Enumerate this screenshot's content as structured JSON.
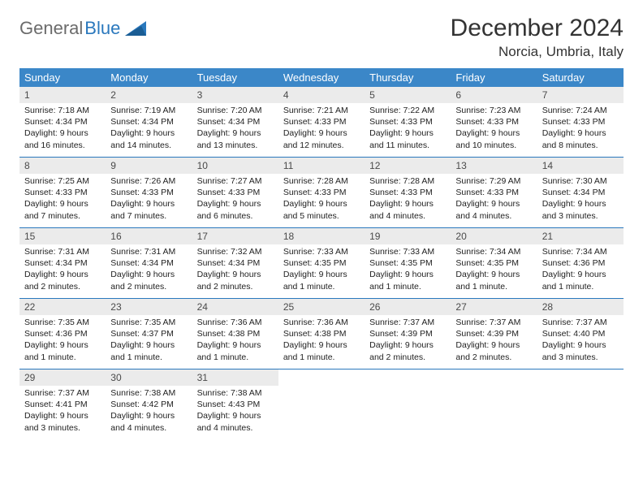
{
  "brand": {
    "word1": "General",
    "word2": "Blue",
    "grey": "#6b6b6b",
    "blue": "#2a78bd"
  },
  "title": {
    "month": "December 2024",
    "location": "Norcia, Umbria, Italy"
  },
  "header_color": "#3b87c8",
  "weekdays": [
    "Sunday",
    "Monday",
    "Tuesday",
    "Wednesday",
    "Thursday",
    "Friday",
    "Saturday"
  ],
  "days": [
    {
      "n": 1,
      "sr": "7:18 AM",
      "ss": "4:34 PM",
      "dl": "9 hours and 16 minutes."
    },
    {
      "n": 2,
      "sr": "7:19 AM",
      "ss": "4:34 PM",
      "dl": "9 hours and 14 minutes."
    },
    {
      "n": 3,
      "sr": "7:20 AM",
      "ss": "4:34 PM",
      "dl": "9 hours and 13 minutes."
    },
    {
      "n": 4,
      "sr": "7:21 AM",
      "ss": "4:33 PM",
      "dl": "9 hours and 12 minutes."
    },
    {
      "n": 5,
      "sr": "7:22 AM",
      "ss": "4:33 PM",
      "dl": "9 hours and 11 minutes."
    },
    {
      "n": 6,
      "sr": "7:23 AM",
      "ss": "4:33 PM",
      "dl": "9 hours and 10 minutes."
    },
    {
      "n": 7,
      "sr": "7:24 AM",
      "ss": "4:33 PM",
      "dl": "9 hours and 8 minutes."
    },
    {
      "n": 8,
      "sr": "7:25 AM",
      "ss": "4:33 PM",
      "dl": "9 hours and 7 minutes."
    },
    {
      "n": 9,
      "sr": "7:26 AM",
      "ss": "4:33 PM",
      "dl": "9 hours and 7 minutes."
    },
    {
      "n": 10,
      "sr": "7:27 AM",
      "ss": "4:33 PM",
      "dl": "9 hours and 6 minutes."
    },
    {
      "n": 11,
      "sr": "7:28 AM",
      "ss": "4:33 PM",
      "dl": "9 hours and 5 minutes."
    },
    {
      "n": 12,
      "sr": "7:28 AM",
      "ss": "4:33 PM",
      "dl": "9 hours and 4 minutes."
    },
    {
      "n": 13,
      "sr": "7:29 AM",
      "ss": "4:33 PM",
      "dl": "9 hours and 4 minutes."
    },
    {
      "n": 14,
      "sr": "7:30 AM",
      "ss": "4:34 PM",
      "dl": "9 hours and 3 minutes."
    },
    {
      "n": 15,
      "sr": "7:31 AM",
      "ss": "4:34 PM",
      "dl": "9 hours and 2 minutes."
    },
    {
      "n": 16,
      "sr": "7:31 AM",
      "ss": "4:34 PM",
      "dl": "9 hours and 2 minutes."
    },
    {
      "n": 17,
      "sr": "7:32 AM",
      "ss": "4:34 PM",
      "dl": "9 hours and 2 minutes."
    },
    {
      "n": 18,
      "sr": "7:33 AM",
      "ss": "4:35 PM",
      "dl": "9 hours and 1 minute."
    },
    {
      "n": 19,
      "sr": "7:33 AM",
      "ss": "4:35 PM",
      "dl": "9 hours and 1 minute."
    },
    {
      "n": 20,
      "sr": "7:34 AM",
      "ss": "4:35 PM",
      "dl": "9 hours and 1 minute."
    },
    {
      "n": 21,
      "sr": "7:34 AM",
      "ss": "4:36 PM",
      "dl": "9 hours and 1 minute."
    },
    {
      "n": 22,
      "sr": "7:35 AM",
      "ss": "4:36 PM",
      "dl": "9 hours and 1 minute."
    },
    {
      "n": 23,
      "sr": "7:35 AM",
      "ss": "4:37 PM",
      "dl": "9 hours and 1 minute."
    },
    {
      "n": 24,
      "sr": "7:36 AM",
      "ss": "4:38 PM",
      "dl": "9 hours and 1 minute."
    },
    {
      "n": 25,
      "sr": "7:36 AM",
      "ss": "4:38 PM",
      "dl": "9 hours and 1 minute."
    },
    {
      "n": 26,
      "sr": "7:37 AM",
      "ss": "4:39 PM",
      "dl": "9 hours and 2 minutes."
    },
    {
      "n": 27,
      "sr": "7:37 AM",
      "ss": "4:39 PM",
      "dl": "9 hours and 2 minutes."
    },
    {
      "n": 28,
      "sr": "7:37 AM",
      "ss": "4:40 PM",
      "dl": "9 hours and 3 minutes."
    },
    {
      "n": 29,
      "sr": "7:37 AM",
      "ss": "4:41 PM",
      "dl": "9 hours and 3 minutes."
    },
    {
      "n": 30,
      "sr": "7:38 AM",
      "ss": "4:42 PM",
      "dl": "9 hours and 4 minutes."
    },
    {
      "n": 31,
      "sr": "7:38 AM",
      "ss": "4:43 PM",
      "dl": "9 hours and 4 minutes."
    }
  ],
  "labels": {
    "sunrise": "Sunrise: ",
    "sunset": "Sunset: ",
    "daylight": "Daylight: "
  }
}
